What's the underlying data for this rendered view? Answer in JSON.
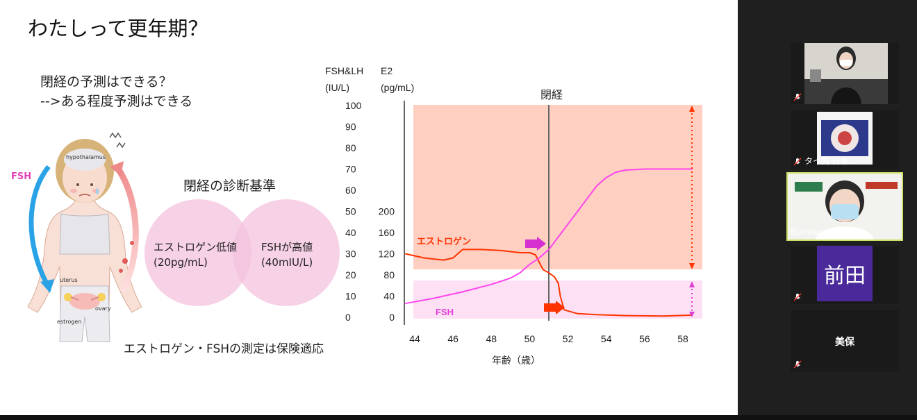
{
  "slide": {
    "title": "わたしって更年期？",
    "q_line1": "閉経の予測はできる？",
    "q_line2": "-->ある程度予測はできる",
    "illus": {
      "fsh": "FSH",
      "hypothalamus": "hypothalamus",
      "uterus": "uterus",
      "ovary": "ovary",
      "estrogen": "estrogen"
    },
    "diagnosis_title": "閉経の診断基準",
    "venn_left_line1": "エストロゲン低値",
    "venn_left_line2": "(20pg/mL)",
    "venn_right_line1": "FSHが高値",
    "venn_right_line2": "(40mIU/L)",
    "insurance_note": "エストロゲン・FSHの測定は保険適応"
  },
  "chart_data": {
    "type": "line",
    "title": "閉経",
    "xlabel": "年齢（歳）",
    "x_ticks": [
      "44",
      "46",
      "48",
      "50",
      "52",
      "54",
      "56",
      "58"
    ],
    "xlim": [
      44,
      58
    ],
    "menopause_age": 51,
    "y_axes": [
      {
        "label_line1": "FSH&LH",
        "label_line2": "(IU/L)",
        "ticks": [
          "100",
          "90",
          "80",
          "70",
          "60",
          "50",
          "40",
          "30",
          "20",
          "10",
          "0"
        ],
        "ylim": [
          0,
          100
        ]
      },
      {
        "label_line1": "E2",
        "label_line2": "(pg/mL)",
        "ticks": [
          "200",
          "160",
          "120",
          "80",
          "40",
          "0"
        ],
        "ylim": [
          0,
          200
        ]
      }
    ],
    "series": [
      {
        "name": "エストロゲン",
        "color": "#ff3300",
        "x": [
          43.5,
          44.5,
          45.5,
          46,
          46.5,
          47.5,
          48.5,
          49.5,
          50,
          50.3,
          50.5,
          50.7,
          51,
          51.3,
          51.5,
          51.6,
          51.8,
          52.5,
          53.5,
          55,
          57,
          58.5
        ],
        "y": [
          30,
          28,
          27,
          28,
          32,
          32,
          31.5,
          30.5,
          30.5,
          29.5,
          26,
          22.5,
          21,
          19,
          16,
          10,
          3.5,
          1.7,
          1.2,
          0.8,
          0.6,
          1
        ]
      },
      {
        "name": "FSH",
        "color": "#ff44ee",
        "x": [
          43.5,
          45,
          46.5,
          48,
          49,
          49.5,
          50,
          50.5,
          51,
          51.5,
          52,
          52.5,
          53,
          53.5,
          54,
          54.5,
          55,
          56,
          57,
          58.5
        ],
        "y": [
          6.5,
          9,
          12,
          15.5,
          18.5,
          21,
          25,
          28,
          32,
          38,
          44,
          50,
          56,
          62,
          66,
          68.5,
          69.5,
          70,
          70,
          70
        ]
      }
    ]
  },
  "panel": {
    "participants": [
      {
        "name": "",
        "muted": true
      },
      {
        "name": "タイ国 日本...",
        "muted": true
      },
      {
        "name": "Bumrungrad病...",
        "muted": false,
        "active": true
      },
      {
        "name": "",
        "muted": true,
        "initials": "前田"
      },
      {
        "name": "美保",
        "muted": true
      }
    ]
  }
}
